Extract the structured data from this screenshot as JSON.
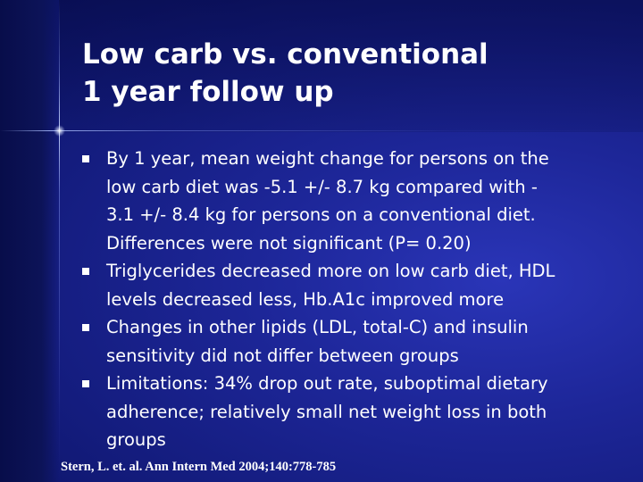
{
  "slide": {
    "title_lines": [
      "Low carb vs. conventional",
      "1 year follow up"
    ],
    "bullets": [
      {
        "lines": [
          "By 1 year, mean weight change for persons on the",
          "low carb diet was -5.1 +/- 8.7 kg compared with -",
          "3.1 +/- 8.4 kg for persons on a conventional diet.",
          "Differences were not significant (P= 0.20)"
        ]
      },
      {
        "lines": [
          "Triglycerides decreased more on low carb diet, HDL",
          "levels decreased less, Hb.A1c improved more"
        ]
      },
      {
        "lines": [
          "Changes in other lipids (LDL, total-C) and insulin",
          "sensitivity did not differ between groups"
        ]
      },
      {
        "lines": [
          "Limitations: 34% drop out rate, suboptimal dietary",
          "adherence; relatively small net weight loss in both",
          "groups"
        ]
      }
    ],
    "citation": "Stern, L. et. al. Ann Intern Med 2004;140:778-785",
    "bullet_icon": "square-bullet-icon",
    "colors": {
      "background": "#1d2698",
      "text": "#ffffff"
    }
  }
}
